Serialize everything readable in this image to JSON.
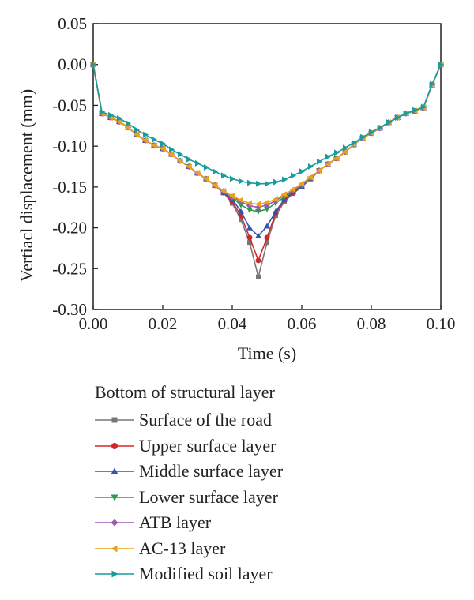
{
  "chart_data": {
    "type": "line",
    "xlabel": "Time (s)",
    "ylabel": "Vertiacl displacement (mm)",
    "xlim": [
      0.0,
      0.1
    ],
    "ylim": [
      -0.3,
      0.05
    ],
    "xticks": [
      "0.00",
      "0.02",
      "0.04",
      "0.06",
      "0.08",
      "0.10"
    ],
    "yticks": [
      "0.05",
      "0.00",
      "-0.05",
      "-0.10",
      "-0.15",
      "-0.20",
      "-0.25",
      "-0.30"
    ],
    "grid": false,
    "legend_title": "Bottom of structural layer",
    "legend_placement": "below",
    "x": [
      0.0,
      0.0025,
      0.005,
      0.0075,
      0.01,
      0.0125,
      0.015,
      0.0175,
      0.02,
      0.0225,
      0.025,
      0.0275,
      0.03,
      0.0325,
      0.035,
      0.0375,
      0.04,
      0.0425,
      0.045,
      0.0475,
      0.05,
      0.0525,
      0.055,
      0.0575,
      0.06,
      0.0625,
      0.065,
      0.0675,
      0.07,
      0.0725,
      0.075,
      0.0775,
      0.08,
      0.0825,
      0.085,
      0.0875,
      0.09,
      0.0925,
      0.095,
      0.0975,
      0.1
    ],
    "series": [
      {
        "name": "Surface of the road",
        "color": "#777777",
        "marker": "square",
        "values": [
          0.0,
          -0.06,
          -0.065,
          -0.07,
          -0.077,
          -0.086,
          -0.093,
          -0.099,
          -0.103,
          -0.11,
          -0.118,
          -0.125,
          -0.133,
          -0.14,
          -0.148,
          -0.157,
          -0.17,
          -0.19,
          -0.218,
          -0.26,
          -0.218,
          -0.185,
          -0.168,
          -0.158,
          -0.15,
          -0.14,
          -0.13,
          -0.122,
          -0.115,
          -0.107,
          -0.098,
          -0.09,
          -0.084,
          -0.078,
          -0.071,
          -0.065,
          -0.06,
          -0.057,
          -0.053,
          -0.025,
          0.0
        ]
      },
      {
        "name": "Upper surface layer",
        "color": "#d62728",
        "marker": "circle",
        "values": [
          0.0,
          -0.06,
          -0.065,
          -0.07,
          -0.077,
          -0.086,
          -0.093,
          -0.099,
          -0.103,
          -0.11,
          -0.118,
          -0.125,
          -0.133,
          -0.14,
          -0.148,
          -0.157,
          -0.168,
          -0.185,
          -0.212,
          -0.24,
          -0.212,
          -0.182,
          -0.166,
          -0.157,
          -0.149,
          -0.14,
          -0.13,
          -0.122,
          -0.115,
          -0.107,
          -0.098,
          -0.09,
          -0.084,
          -0.078,
          -0.071,
          -0.065,
          -0.06,
          -0.057,
          -0.053,
          -0.025,
          0.0
        ]
      },
      {
        "name": "Middle surface layer",
        "color": "#3353b5",
        "marker": "triangle-up",
        "values": [
          0.0,
          -0.06,
          -0.065,
          -0.07,
          -0.077,
          -0.086,
          -0.093,
          -0.099,
          -0.103,
          -0.11,
          -0.118,
          -0.125,
          -0.133,
          -0.14,
          -0.148,
          -0.157,
          -0.165,
          -0.18,
          -0.2,
          -0.21,
          -0.198,
          -0.18,
          -0.165,
          -0.156,
          -0.149,
          -0.14,
          -0.13,
          -0.122,
          -0.115,
          -0.107,
          -0.098,
          -0.09,
          -0.084,
          -0.078,
          -0.071,
          -0.065,
          -0.06,
          -0.057,
          -0.053,
          -0.025,
          0.0
        ]
      },
      {
        "name": "Lower surface layer",
        "color": "#2e9a4a",
        "marker": "triangle-down",
        "values": [
          0.0,
          -0.06,
          -0.065,
          -0.07,
          -0.077,
          -0.086,
          -0.093,
          -0.099,
          -0.103,
          -0.11,
          -0.118,
          -0.125,
          -0.133,
          -0.14,
          -0.148,
          -0.155,
          -0.163,
          -0.172,
          -0.178,
          -0.18,
          -0.177,
          -0.17,
          -0.162,
          -0.155,
          -0.148,
          -0.14,
          -0.13,
          -0.122,
          -0.115,
          -0.107,
          -0.098,
          -0.09,
          -0.084,
          -0.078,
          -0.071,
          -0.065,
          -0.06,
          -0.057,
          -0.053,
          -0.025,
          0.0
        ]
      },
      {
        "name": "ATB layer",
        "color": "#9b59b6",
        "marker": "diamond",
        "values": [
          0.0,
          -0.06,
          -0.065,
          -0.07,
          -0.077,
          -0.086,
          -0.093,
          -0.099,
          -0.103,
          -0.11,
          -0.118,
          -0.125,
          -0.133,
          -0.14,
          -0.148,
          -0.155,
          -0.162,
          -0.168,
          -0.173,
          -0.175,
          -0.172,
          -0.167,
          -0.16,
          -0.154,
          -0.147,
          -0.139,
          -0.13,
          -0.122,
          -0.115,
          -0.107,
          -0.098,
          -0.09,
          -0.084,
          -0.078,
          -0.071,
          -0.065,
          -0.06,
          -0.057,
          -0.053,
          -0.025,
          0.0
        ]
      },
      {
        "name": "AC-13 layer",
        "color": "#e8a317",
        "marker": "triangle-left",
        "values": [
          0.0,
          -0.06,
          -0.065,
          -0.07,
          -0.077,
          -0.086,
          -0.093,
          -0.099,
          -0.103,
          -0.11,
          -0.118,
          -0.125,
          -0.133,
          -0.14,
          -0.148,
          -0.155,
          -0.161,
          -0.166,
          -0.17,
          -0.171,
          -0.169,
          -0.165,
          -0.159,
          -0.153,
          -0.146,
          -0.138,
          -0.13,
          -0.122,
          -0.115,
          -0.107,
          -0.098,
          -0.09,
          -0.084,
          -0.078,
          -0.071,
          -0.065,
          -0.06,
          -0.057,
          -0.053,
          -0.025,
          0.0
        ]
      },
      {
        "name": "Modified soil layer",
        "color": "#1a9c9c",
        "marker": "triangle-right",
        "values": [
          0.0,
          -0.058,
          -0.062,
          -0.066,
          -0.072,
          -0.08,
          -0.086,
          -0.092,
          -0.097,
          -0.104,
          -0.11,
          -0.116,
          -0.121,
          -0.126,
          -0.131,
          -0.136,
          -0.14,
          -0.143,
          -0.145,
          -0.146,
          -0.146,
          -0.144,
          -0.141,
          -0.136,
          -0.131,
          -0.125,
          -0.119,
          -0.113,
          -0.108,
          -0.102,
          -0.096,
          -0.089,
          -0.083,
          -0.077,
          -0.071,
          -0.065,
          -0.06,
          -0.056,
          -0.052,
          -0.024,
          0.0
        ]
      }
    ]
  }
}
